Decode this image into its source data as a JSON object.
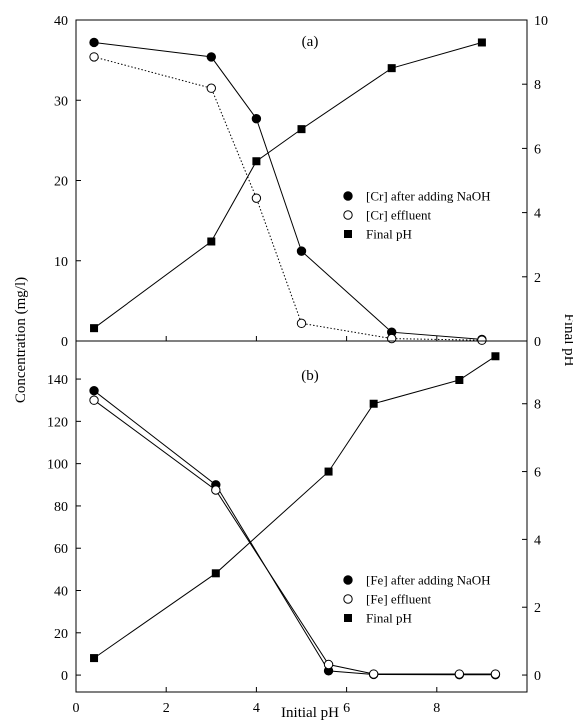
{
  "chart_data": {
    "type": "line",
    "xlabel": "Initial pH",
    "ylabel_left": "Concentration (mg/l)",
    "ylabel_right": "Final pH",
    "xlim": [
      0,
      10
    ],
    "x_ticks": [
      "0",
      "2",
      "4",
      "6",
      "8"
    ],
    "grid": false,
    "panels": [
      {
        "id": "a",
        "label": "(a)",
        "y_left": {
          "lim": [
            0,
            40
          ],
          "ticks": [
            "0",
            "10",
            "20",
            "30",
            "40"
          ]
        },
        "y_right": {
          "lim": [
            0,
            10
          ],
          "ticks": [
            "0",
            "2",
            "4",
            "6",
            "8",
            "10"
          ]
        },
        "legend_position": "center-right",
        "series": [
          {
            "name": "[Cr] after adding NaOH",
            "axis": "left",
            "marker": "filled-circle",
            "line": "solid",
            "x": [
              0.4,
              3.0,
              4.0,
              5.0,
              7.0,
              9.0
            ],
            "y": [
              37.2,
              35.4,
              27.7,
              11.2,
              1.1,
              0.2
            ]
          },
          {
            "name": "[Cr] effluent",
            "axis": "left",
            "marker": "open-circle",
            "line": "dotted",
            "x": [
              0.4,
              3.0,
              4.0,
              5.0,
              7.0,
              9.0
            ],
            "y": [
              35.4,
              31.5,
              17.8,
              2.2,
              0.3,
              0.1
            ]
          },
          {
            "name": "Final pH",
            "axis": "right",
            "marker": "filled-square",
            "line": "solid",
            "x": [
              0.4,
              3.0,
              4.0,
              5.0,
              7.0,
              9.0
            ],
            "y": [
              0.4,
              3.1,
              5.6,
              6.6,
              8.5,
              9.3
            ]
          }
        ]
      },
      {
        "id": "b",
        "label": "(b)",
        "y_left": {
          "lim": [
            -8,
            158
          ],
          "ticks": [
            "0",
            "20",
            "40",
            "60",
            "80",
            "100",
            "120",
            "140"
          ]
        },
        "y_right": {
          "lim": [
            -0.5,
            9.85
          ],
          "ticks": [
            "0",
            "2",
            "4",
            "6",
            "8"
          ]
        },
        "legend_position": "lower-right",
        "series": [
          {
            "name": "[Fe] after adding NaOH",
            "axis": "left",
            "marker": "filled-circle",
            "line": "solid",
            "x": [
              0.4,
              3.1,
              5.6,
              6.6,
              8.5,
              9.3
            ],
            "y": [
              134.5,
              90,
              2,
              0.3,
              0.2,
              0.2
            ]
          },
          {
            "name": "[Fe] effluent",
            "axis": "left",
            "marker": "open-circle",
            "line": "solid",
            "x": [
              0.4,
              3.1,
              5.6,
              6.6,
              8.5,
              9.3
            ],
            "y": [
              130,
              87.5,
              5,
              0.5,
              0.5,
              0.5
            ]
          },
          {
            "name": "Final pH",
            "axis": "right",
            "marker": "filled-square",
            "line": "solid",
            "x": [
              0.4,
              3.1,
              5.6,
              6.6,
              8.5,
              9.3
            ],
            "y": [
              0.5,
              3.0,
              6.0,
              8.0,
              8.7,
              9.4
            ]
          }
        ]
      }
    ]
  }
}
